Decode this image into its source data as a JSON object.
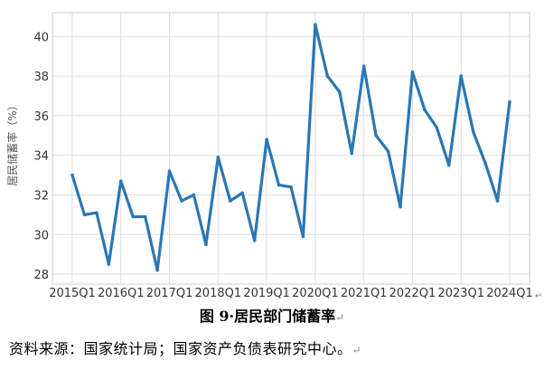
{
  "chart_data": {
    "type": "line",
    "ylabel": "居民储蓄率（%）",
    "xlabel": "",
    "ylim": [
      27.5,
      41.2
    ],
    "yticks": [
      28,
      30,
      32,
      34,
      36,
      38,
      40
    ],
    "xtick_labels": [
      "2015Q1",
      "2016Q1",
      "2017Q1",
      "2018Q1",
      "2019Q1",
      "2020Q1",
      "2021Q1",
      "2022Q1",
      "2023Q1",
      "2024Q1"
    ],
    "grid": true,
    "line_color": "#2a77b4",
    "x": [
      "2015Q1",
      "2015Q2",
      "2015Q3",
      "2015Q4",
      "2016Q1",
      "2016Q2",
      "2016Q3",
      "2016Q4",
      "2017Q1",
      "2017Q2",
      "2017Q3",
      "2017Q4",
      "2018Q1",
      "2018Q2",
      "2018Q3",
      "2018Q4",
      "2019Q1",
      "2019Q2",
      "2019Q3",
      "2019Q4",
      "2020Q1",
      "2020Q2",
      "2020Q3",
      "2020Q4",
      "2021Q1",
      "2021Q2",
      "2021Q3",
      "2021Q4",
      "2022Q1",
      "2022Q2",
      "2022Q3",
      "2022Q4",
      "2023Q1",
      "2023Q2",
      "2023Q3",
      "2023Q4",
      "2024Q1"
    ],
    "values": [
      33.0,
      31.0,
      31.1,
      28.5,
      32.7,
      30.9,
      30.9,
      28.2,
      33.2,
      31.7,
      32.0,
      29.5,
      33.9,
      31.7,
      32.1,
      29.7,
      34.8,
      32.5,
      32.4,
      29.9,
      40.6,
      38.0,
      37.2,
      34.1,
      38.5,
      35.0,
      34.2,
      31.4,
      38.2,
      36.3,
      35.4,
      33.5,
      38.0,
      35.2,
      33.6,
      31.7,
      36.7
    ]
  },
  "caption": {
    "text": "图 9 居民部门储蓄率",
    "separator": "·",
    "title": "居民部门储蓄率",
    "prefix": "图 9",
    "end_mark": "↵"
  },
  "source": {
    "text": "资料来源：国家统计局；国家资产负债表研究中心。",
    "end_mark": "↵"
  },
  "edge_mark": "↵"
}
